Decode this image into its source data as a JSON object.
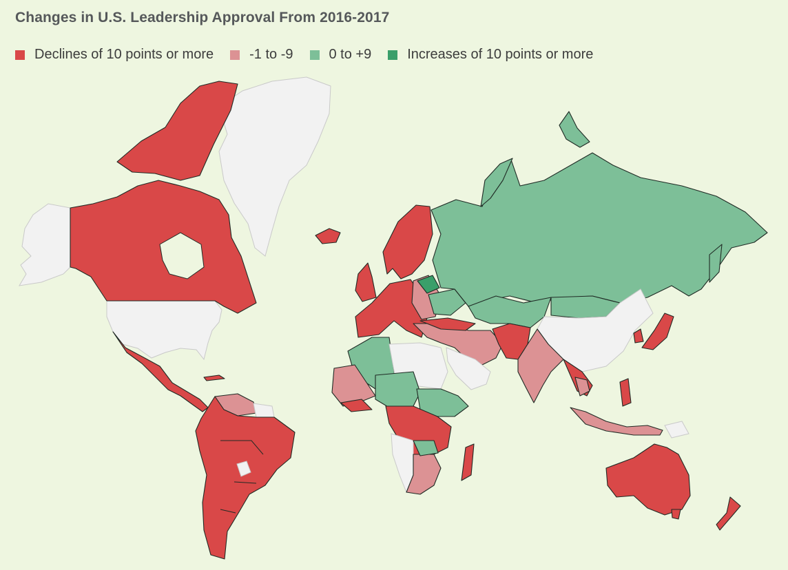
{
  "title": "Changes in U.S. Leadership Approval From 2016-2017",
  "legend": [
    {
      "label": "Declines of 10 points or more",
      "color": "#d94848"
    },
    {
      "label": "-1 to -9",
      "color": "#dc9294"
    },
    {
      "label": "0 to +9",
      "color": "#7dbf98"
    },
    {
      "label": "Increases of 10 points or more",
      "color": "#3a9f6a"
    }
  ],
  "colors": {
    "background": "#eef6e0",
    "no_data": "#f2f2f2",
    "decline_large": "#d94848",
    "decline_small": "#dc9294",
    "increase_small": "#7dbf98",
    "increase_large": "#3a9f6a"
  }
}
